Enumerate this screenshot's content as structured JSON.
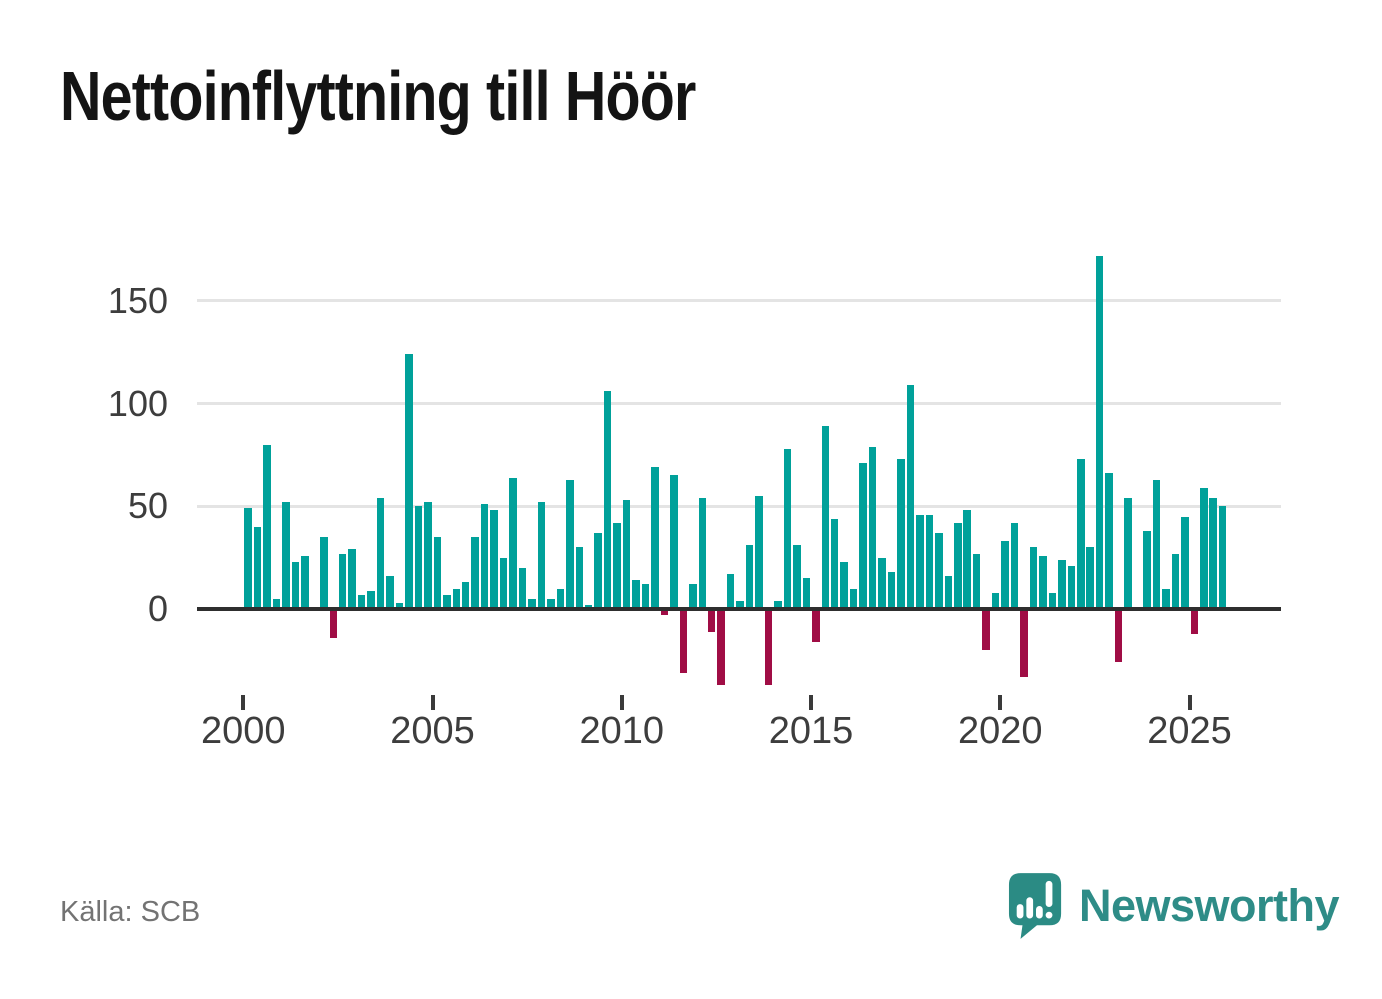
{
  "title": "Nettoinflyttning till Höör",
  "source_note": "Källa: SCB",
  "branding": {
    "name": "Newsworthy",
    "logo_icon": "speech-bubble-bar-chart-exclamation",
    "text_color": "#2e8c87",
    "icon_color": "#2b8b84"
  },
  "chart_data": {
    "type": "bar",
    "title": "Nettoinflyttning till Höör",
    "x_start": "2000Q1",
    "x_end": "2025Q4",
    "frequency": "quarterly",
    "x_tick_labels": [
      "2000",
      "2005",
      "2010",
      "2015",
      "2020",
      "2025"
    ],
    "y_ticks": [
      0,
      50,
      100,
      150
    ],
    "y_tick_labels": [
      "0",
      "50",
      "100",
      "150"
    ],
    "ylim": [
      -45,
      185
    ],
    "grid": true,
    "legend": false,
    "bar_color_positive": "#00a19a",
    "bar_color_negative": "#a00d45",
    "grid_color": "#e4e4e4",
    "axis_color": "#2e2e2e",
    "values": [
      49,
      40,
      80,
      5,
      52,
      23,
      26,
      0,
      35,
      -14,
      27,
      29,
      7,
      9,
      54,
      16,
      3,
      124,
      50,
      52,
      35,
      7,
      10,
      13,
      35,
      51,
      48,
      25,
      64,
      20,
      5,
      52,
      5,
      10,
      63,
      30,
      2,
      37,
      106,
      42,
      53,
      14,
      12,
      69,
      -3,
      65,
      -31,
      12,
      54,
      -11,
      -37,
      17,
      4,
      31,
      55,
      -37,
      4,
      78,
      31,
      15,
      -16,
      89,
      44,
      23,
      10,
      71,
      79,
      25,
      18,
      73,
      109,
      46,
      46,
      37,
      16,
      42,
      48,
      27,
      -20,
      8,
      33,
      42,
      -33,
      30,
      26,
      8,
      24,
      21,
      73,
      30,
      172,
      66,
      -26,
      54,
      0,
      38,
      63,
      10,
      27,
      45,
      -12,
      59,
      54,
      50
    ]
  }
}
